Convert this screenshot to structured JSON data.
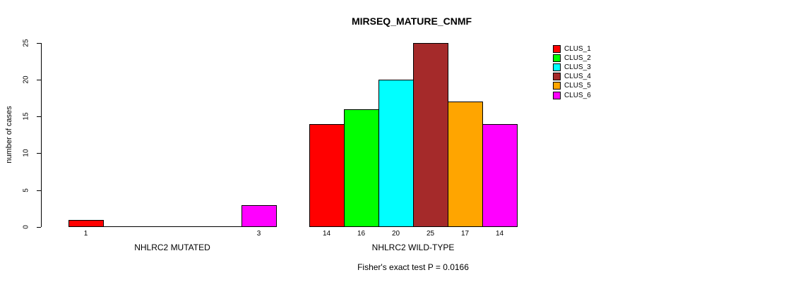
{
  "figure": {
    "background": "#FFFFFF",
    "text_color": "#000000"
  },
  "chart_data": {
    "type": "bar",
    "title": "MIRSEQ_MATURE_CNMF",
    "ylabel": "number of cases",
    "xlabel": "",
    "ylim": [
      0,
      25
    ],
    "yticks": [
      0,
      5,
      10,
      15,
      20,
      25
    ],
    "grid": false,
    "legend_position": "right-outside",
    "axis_color": "#000000",
    "series": [
      {
        "name": "CLUS_1",
        "color": "#FF0000"
      },
      {
        "name": "CLUS_2",
        "color": "#00FF00"
      },
      {
        "name": "CLUS_3",
        "color": "#00FFFF"
      },
      {
        "name": "CLUS_4",
        "color": "#A52A2A"
      },
      {
        "name": "CLUS_5",
        "color": "#FFA500"
      },
      {
        "name": "CLUS_6",
        "color": "#FF00FF"
      }
    ],
    "groups": [
      {
        "label": "NHLRC2 MUTATED",
        "values": [
          1,
          0,
          0,
          0,
          0,
          3
        ],
        "bar_labels": [
          "1",
          "",
          "",
          "",
          "",
          "3"
        ]
      },
      {
        "label": "NHLRC2 WILD-TYPE",
        "values": [
          14,
          16,
          20,
          25,
          17,
          14
        ],
        "bar_labels": [
          "14",
          "16",
          "20",
          "25",
          "17",
          "14"
        ]
      }
    ],
    "annotation": "Fisher's exact test P = 0.0166"
  }
}
